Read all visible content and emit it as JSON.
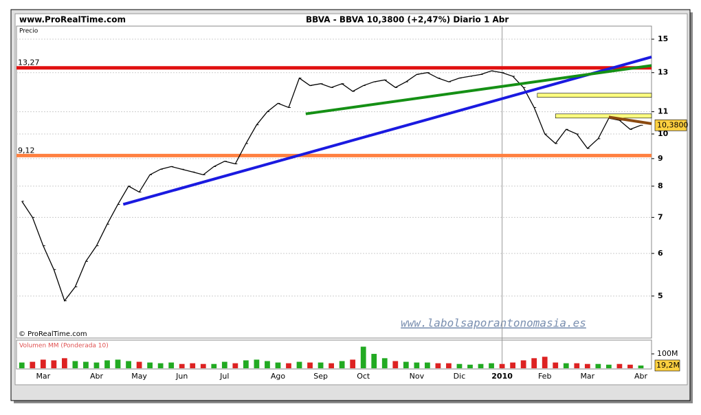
{
  "source": "www.ProRealTime.com",
  "chart_data": [
    {
      "type": "line",
      "title": "BBVA - BBVA    10,3800 (+2,47%)   Diario  1 Abr",
      "y_label": "Precio",
      "copyright": "© ProRealTime.com",
      "watermark": "www.labolsaporantonomasia.es",
      "log_scale": true,
      "grid": true,
      "color": "#000000",
      "categories": [
        null,
        null,
        "Mar",
        null,
        null,
        null,
        null,
        "Abr",
        null,
        null,
        null,
        "May",
        null,
        null,
        null,
        "Jun",
        null,
        null,
        null,
        "Jul",
        null,
        null,
        null,
        null,
        "Ago",
        null,
        null,
        null,
        "Sep",
        null,
        null,
        null,
        "Oct",
        null,
        null,
        null,
        null,
        "Nov",
        null,
        null,
        null,
        "Dic",
        null,
        null,
        null,
        "2010",
        null,
        null,
        null,
        "Feb",
        null,
        null,
        null,
        "Mar",
        null,
        null,
        null,
        null,
        "Abr"
      ],
      "values": [
        7.5,
        7.0,
        6.2,
        5.6,
        4.9,
        5.2,
        5.8,
        6.2,
        6.8,
        7.4,
        8.0,
        7.8,
        8.4,
        8.6,
        8.7,
        8.6,
        8.5,
        8.4,
        8.7,
        8.9,
        8.8,
        9.6,
        10.4,
        11.0,
        11.4,
        11.2,
        12.7,
        12.3,
        12.4,
        12.2,
        12.4,
        12.0,
        12.3,
        12.5,
        12.6,
        12.2,
        12.5,
        12.9,
        13.0,
        12.7,
        12.5,
        12.7,
        12.8,
        12.9,
        13.1,
        13.0,
        12.8,
        12.2,
        11.2,
        10.0,
        9.6,
        10.2,
        10.0,
        9.4,
        9.8,
        10.7,
        10.6,
        10.2,
        10.38
      ],
      "ylim": [
        4.19,
        15.77
      ],
      "yticks": [
        5,
        6,
        7,
        8,
        9,
        10,
        11,
        13,
        15
      ],
      "last_price": {
        "value": 10.38,
        "label": "10,3800"
      },
      "levels": [
        {
          "value": 13.27,
          "label": "13,27",
          "color": "#e01010"
        },
        {
          "value": 9.12,
          "label": "9,12",
          "color": "#ff8040"
        }
      ],
      "zones": [
        {
          "value": 11.8,
          "start": 48.3,
          "color": "#ffff80"
        },
        {
          "value": 10.8,
          "start": 50,
          "color": "#ffff80"
        }
      ],
      "trendlines": [
        {
          "color": "#1a1ae0",
          "start": [
            9.5,
            7.4
          ],
          "end": [
            59,
            13.9
          ]
        },
        {
          "color": "#159015",
          "start": [
            26.6,
            10.9
          ],
          "end": [
            59,
            13.4
          ]
        },
        {
          "color": "#8b4a10",
          "start": [
            55,
            10.75
          ],
          "end": [
            59,
            10.45
          ]
        }
      ]
    },
    {
      "type": "bar",
      "title": "Volumen MM (Ponderada 10)",
      "up_color": "#22aa22",
      "down_color": "#dd2222",
      "values": [
        40,
        45,
        60,
        55,
        70,
        50,
        45,
        40,
        55,
        60,
        50,
        45,
        40,
        35,
        40,
        30,
        35,
        30,
        30,
        45,
        35,
        55,
        60,
        50,
        40,
        35,
        45,
        40,
        40,
        35,
        50,
        60,
        150,
        100,
        70,
        50,
        45,
        40,
        40,
        35,
        35,
        30,
        25,
        30,
        35,
        30,
        40,
        55,
        70,
        80,
        40,
        35,
        35,
        30,
        30,
        25,
        30,
        25,
        19.2
      ],
      "ylim": [
        0,
        186
      ],
      "yticks": [
        {
          "value": 100,
          "label": "100M"
        }
      ],
      "last": {
        "value": 19.2,
        "label": "19,2M"
      }
    }
  ]
}
